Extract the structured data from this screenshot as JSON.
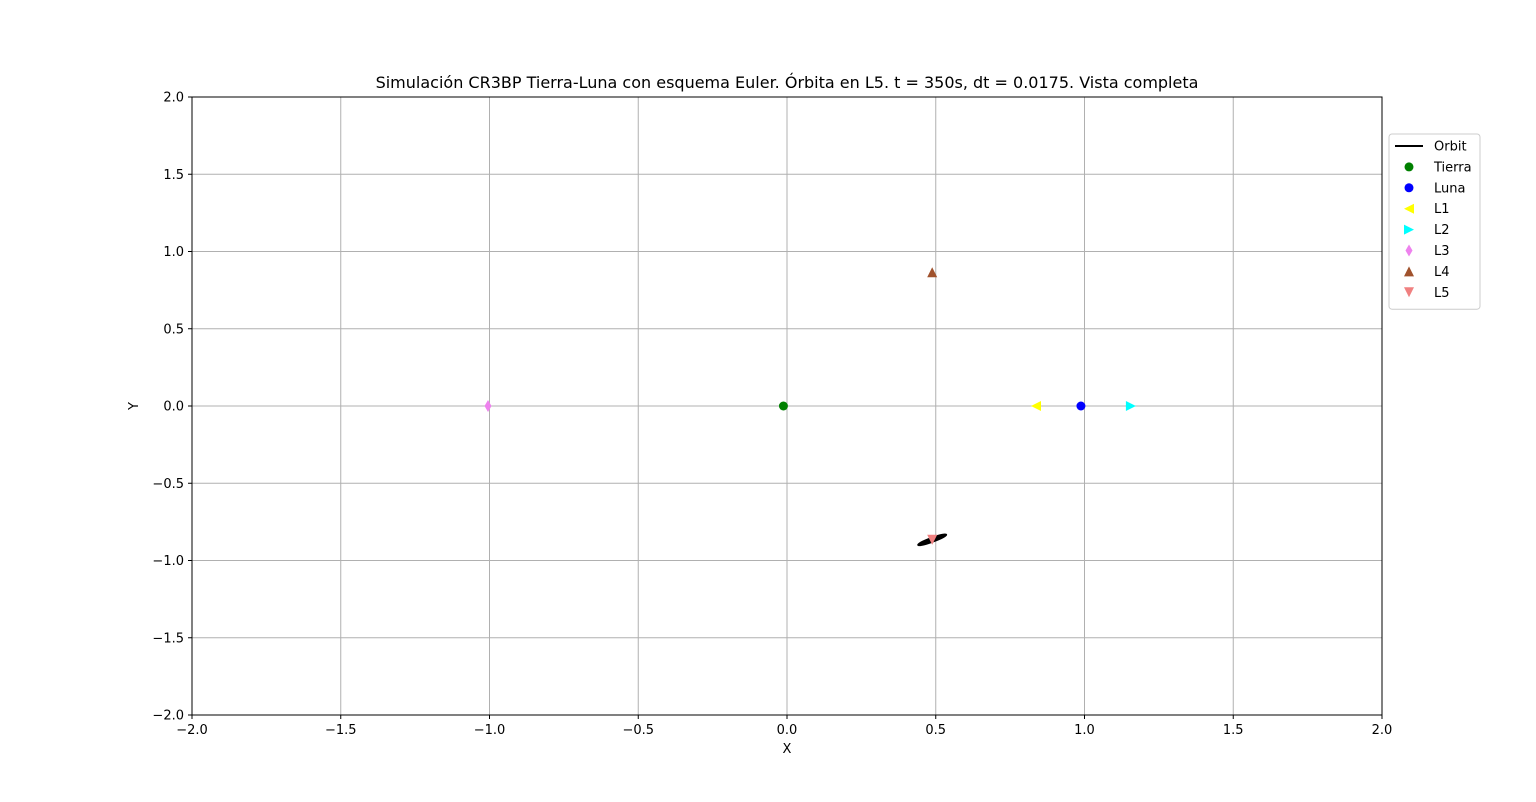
{
  "chart_data": {
    "type": "scatter",
    "title": "Simulación CR3BP Tierra-Luna con esquema Euler. Órbita en L5. t = 350s, dt = 0.0175. Vista completa",
    "xlabel": "X",
    "ylabel": "Y",
    "xlim": [
      -2.0,
      2.0
    ],
    "ylim": [
      -2.0,
      2.0
    ],
    "xticks": [
      -2.0,
      -1.5,
      -1.0,
      -0.5,
      0.0,
      0.5,
      1.0,
      1.5,
      2.0
    ],
    "yticks": [
      -2.0,
      -1.5,
      -1.0,
      -0.5,
      0.0,
      0.5,
      1.0,
      1.5,
      2.0
    ],
    "xtick_labels": [
      "−2.0",
      "−1.5",
      "−1.0",
      "−0.5",
      "0.0",
      "0.5",
      "1.0",
      "1.5",
      "2.0"
    ],
    "ytick_labels": [
      "−2.0",
      "−1.5",
      "−1.0",
      "−0.5",
      "0.0",
      "0.5",
      "1.0",
      "1.5",
      "2.0"
    ],
    "grid": true,
    "legend_position": "right, outside plot area, top",
    "orbit": {
      "name": "Orbit",
      "color": "#000000",
      "center": [
        0.488,
        -0.866
      ],
      "semi_axis_x": 0.05,
      "semi_axis_y": 0.012,
      "rotation_deg": 20
    },
    "series": [
      {
        "name": "Tierra",
        "x": -0.012,
        "y": 0.0,
        "color": "#008000",
        "marker": "circle"
      },
      {
        "name": "Luna",
        "x": 0.988,
        "y": 0.0,
        "color": "#0000ff",
        "marker": "circle"
      },
      {
        "name": "L1",
        "x": 0.837,
        "y": 0.0,
        "color": "#ffff00",
        "marker": "triangle-left"
      },
      {
        "name": "L2",
        "x": 1.156,
        "y": 0.0,
        "color": "#00ffff",
        "marker": "triangle-right"
      },
      {
        "name": "L3",
        "x": -1.005,
        "y": 0.0,
        "color": "#ee82ee",
        "marker": "diamond"
      },
      {
        "name": "L4",
        "x": 0.488,
        "y": 0.866,
        "color": "#a0522d",
        "marker": "triangle-up"
      },
      {
        "name": "L5",
        "x": 0.488,
        "y": -0.866,
        "color": "#f08080",
        "marker": "triangle-down"
      }
    ]
  }
}
